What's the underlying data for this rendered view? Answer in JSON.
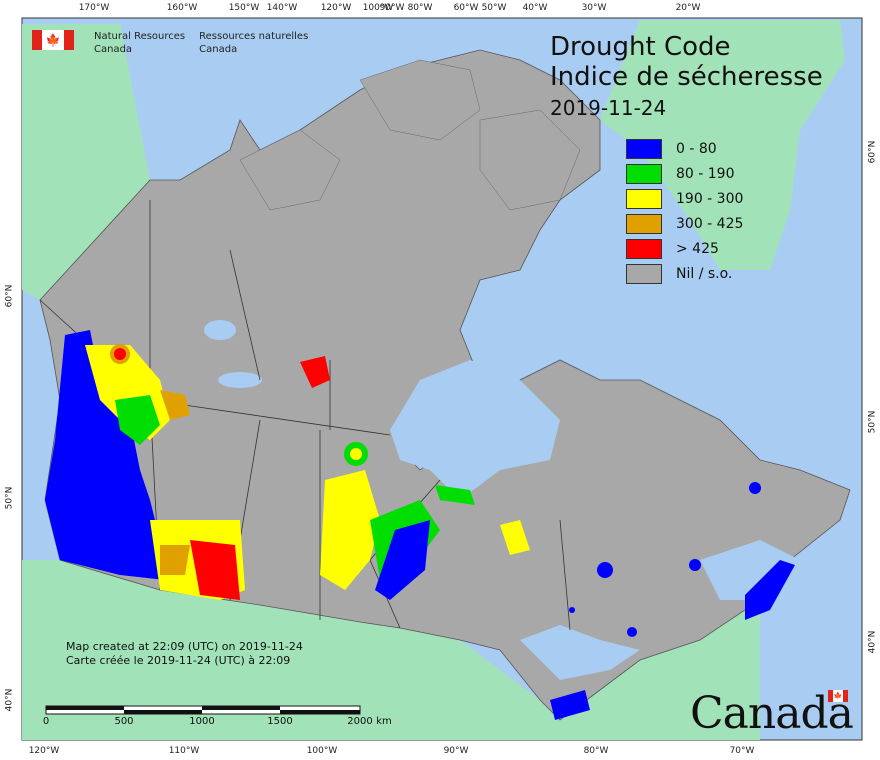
{
  "title": {
    "en": "Drought Code",
    "fr": "Indice de sécheresse",
    "date": "2019-11-24"
  },
  "agency": {
    "en_line1": "Natural Resources",
    "en_line2": "Canada",
    "fr_line1": "Ressources naturelles",
    "fr_line2": "Canada"
  },
  "legend": [
    {
      "label": "0 - 80",
      "color": "#0000ff"
    },
    {
      "label": "80 - 190",
      "color": "#00dd00"
    },
    {
      "label": "190 - 300",
      "color": "#ffff00"
    },
    {
      "label": "300 - 425",
      "color": "#e0a000"
    },
    {
      "label": "> 425",
      "color": "#ff0000"
    },
    {
      "label": "Nil / s.o.",
      "color": "#a8a8a8"
    }
  ],
  "colors": {
    "ocean": "#a9cdf2",
    "foreign_land": "#a2e2b8",
    "canada_nil": "#a8a8a8",
    "lakes": "#a9cdf2",
    "borders": "#222222"
  },
  "credits": {
    "line1": "Map created at 22:09 (UTC) on 2019-11-24",
    "line2": "Carte créée le 2019-11-24 (UTC) à 22:09"
  },
  "scalebar": {
    "labels": [
      "0",
      "500",
      "1000",
      "1500",
      "2000",
      "km"
    ]
  },
  "graticule": {
    "top": [
      "170°W",
      "160°W",
      "150°W",
      "140°W",
      "120°W",
      "100°W",
      "90°W",
      "80°W",
      "60°W",
      "50°W",
      "40°W",
      "30°W",
      "20°W"
    ],
    "bottom": [
      "120°W",
      "110°W",
      "100°W",
      "90°W",
      "80°W",
      "70°W"
    ],
    "left": [
      "60°N",
      "50°N",
      "40°N"
    ],
    "right": [
      "60°N",
      "50°N",
      "40°N"
    ]
  },
  "wordmark": "Canada"
}
